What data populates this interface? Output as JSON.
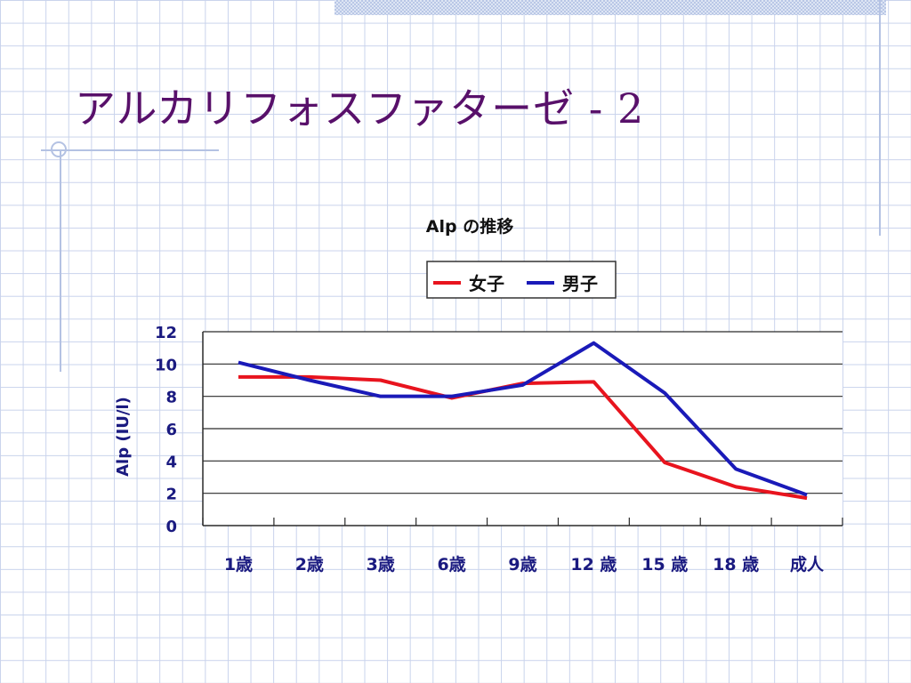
{
  "slide": {
    "title": "アルカリフォスファターゼ - 2"
  },
  "chart_data": {
    "type": "line",
    "title": "Alp の推移",
    "xlabel": "",
    "ylabel": "Alp (IU/l)",
    "categories": [
      "1歳",
      "2歳",
      "3歳",
      "6歳",
      "9歳",
      "12 歳",
      "15 歳",
      "18 歳",
      "成人"
    ],
    "ylim": [
      0,
      12
    ],
    "yticks": [
      "0",
      "2",
      "4",
      "6",
      "8",
      "10",
      "12"
    ],
    "grid": true,
    "legend_position": "top",
    "series": [
      {
        "name": "女子",
        "color": "#e8141e",
        "values": [
          9.2,
          9.2,
          9.0,
          7.9,
          8.8,
          8.9,
          3.9,
          2.4,
          1.7
        ]
      },
      {
        "name": "男子",
        "color": "#1a1ab8",
        "values": [
          10.1,
          9.0,
          8.0,
          8.0,
          8.7,
          11.3,
          8.2,
          3.5,
          1.9
        ]
      }
    ]
  }
}
